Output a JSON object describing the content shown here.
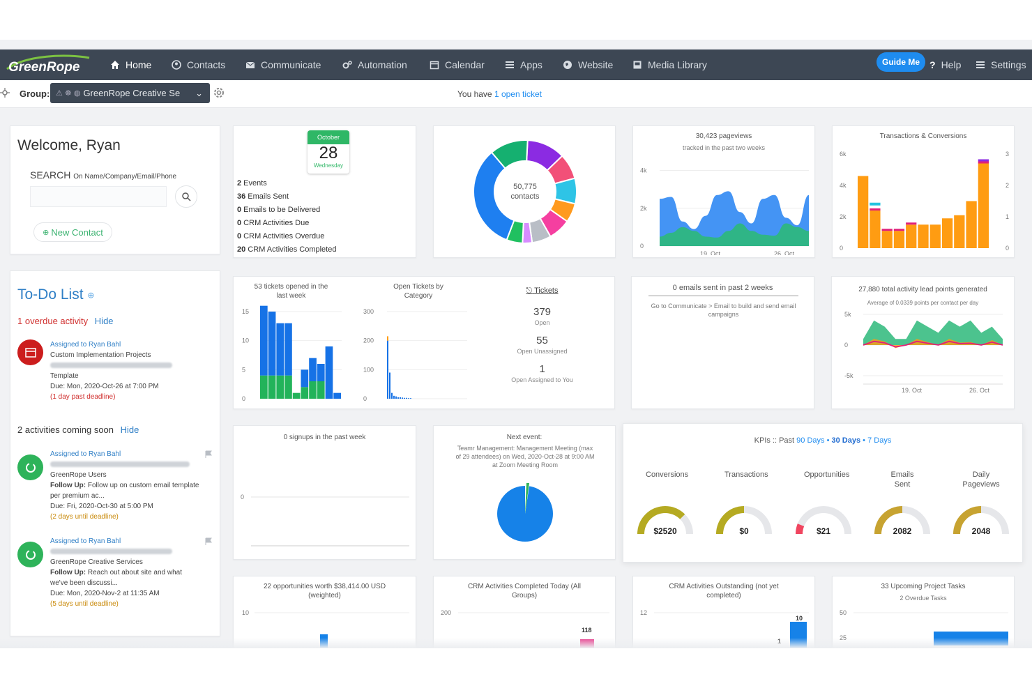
{
  "nav": {
    "logo": "GreenRope",
    "items": [
      "Home",
      "Contacts",
      "Communicate",
      "Automation",
      "Calendar",
      "Apps",
      "Website",
      "Media Library"
    ],
    "guide_me": "Guide Me",
    "help": "Help",
    "settings": "Settings"
  },
  "subbar": {
    "group_label": "Group:",
    "group_value": "GreenRope Creative Se",
    "ticket_prefix": "You have",
    "ticket_link": "1 open ticket"
  },
  "welcome": {
    "title": "Welcome, Ryan",
    "search_label": "SEARCH",
    "search_hint": "On Name/Company/Email/Phone",
    "new_contact": "New Contact"
  },
  "calendar": {
    "month": "October",
    "day": "28",
    "weekday": "Wednesday",
    "stats": [
      {
        "n": "2",
        "t": "Events"
      },
      {
        "n": "36",
        "t": "Emails Sent"
      },
      {
        "n": "0",
        "t": "Emails to be Delivered"
      },
      {
        "n": "0",
        "t": "CRM Activities Due"
      },
      {
        "n": "0",
        "t": "CRM Activities Overdue"
      },
      {
        "n": "20",
        "t": "CRM Activities Completed"
      }
    ]
  },
  "donut": {
    "center_value": "50,775",
    "center_label": "contacts",
    "segment_colors": [
      "#8b2be2",
      "#f25078",
      "#2ec4e6",
      "#ff9a1e",
      "#f53fa0",
      "#b9bec6",
      "#d78cff",
      "#20c060",
      "#1e7ff0",
      "#15b070"
    ]
  },
  "pageviews": {
    "title": "30,423 pageviews",
    "subtitle": "tracked in the past two weeks",
    "chart_data": {
      "type": "area",
      "x_ticks": [
        "19. Oct",
        "26. Oct"
      ],
      "y_ticks": [
        "0",
        "2k",
        "4k"
      ],
      "series": [
        {
          "values": [
            2500,
            2600,
            1300,
            900,
            1600,
            2700,
            2900,
            1800,
            1200,
            2500,
            2700,
            1500,
            1100,
            2700
          ]
        },
        {
          "values": [
            500,
            700,
            1000,
            800,
            500,
            450,
            800,
            1200,
            800,
            600,
            550,
            1200,
            1000,
            800
          ]
        }
      ]
    }
  },
  "transactions": {
    "title": "Transactions & Conversions",
    "chart_data": {
      "type": "bar",
      "y_ticks_left": [
        "0",
        "2k",
        "4k",
        "6k"
      ],
      "y_ticks_right": [
        "0",
        "1",
        "2",
        "3"
      ],
      "values": [
        4600,
        2400,
        1100,
        1100,
        1500,
        1500,
        1500,
        1900,
        2100,
        3000,
        5400
      ],
      "magenta_marks": [
        0,
        1,
        1,
        1,
        1,
        0,
        0,
        0,
        0,
        0,
        1
      ]
    }
  },
  "tickets_week": {
    "title": "53 tickets opened in the last week",
    "chart_data": {
      "type": "bar",
      "y_ticks": [
        "0",
        "5",
        "10",
        "15"
      ],
      "series": [
        {
          "name": "blue",
          "values": [
            12,
            11,
            9,
            9,
            0,
            3,
            4,
            3,
            9,
            1
          ]
        },
        {
          "name": "green",
          "values": [
            4,
            4,
            4,
            4,
            1,
            2,
            3,
            3,
            0,
            0
          ]
        }
      ]
    }
  },
  "tickets_category": {
    "title": "Open Tickets by Category",
    "chart_data": {
      "type": "bar",
      "y_ticks": [
        "0",
        "100",
        "200",
        "300"
      ],
      "values": [
        200,
        90,
        20,
        10,
        8,
        5,
        5,
        4,
        3,
        3,
        2,
        2
      ]
    }
  },
  "tickets_summary": {
    "link": "Tickets",
    "rows": [
      {
        "n": "379",
        "t": "Open"
      },
      {
        "n": "55",
        "t": "Open Unassigned"
      },
      {
        "n": "1",
        "t": "Open Assigned to You"
      }
    ]
  },
  "emails_sent": {
    "title": "0 emails sent in past 2 weeks",
    "hint": "Go to Communicate > Email to build and send email campaigns"
  },
  "lead_points": {
    "title": "27,880 total activity lead points generated",
    "subtitle": "Average of 0.0339 points per contact per day",
    "chart_data": {
      "type": "area",
      "x_ticks": [
        "19. Oct",
        "26. Oct"
      ],
      "y_ticks": [
        "5k",
        "0",
        "-5k"
      ]
    }
  },
  "todo": {
    "title": "To-Do List",
    "overdue": "1 overdue activity",
    "hide": "Hide",
    "item1": {
      "assigned": "Assigned to Ryan Bahl",
      "project": "Custom Implementation Projects",
      "template": "Template",
      "due": "Due: Mon, 2020-Oct-26 at 7:00 PM",
      "note": "(1 day past deadline)"
    },
    "coming": "2 activities coming soon",
    "item2": {
      "assigned": "Assigned to Ryan Bahl",
      "group": "GreenRope Users",
      "follow_label": "Follow Up:",
      "follow_text": "Follow up on custom email template per premium ac...",
      "due": "Due: Fri, 2020-Oct-30 at 5:00 PM",
      "note": "(2 days until deadline)"
    },
    "item3": {
      "assigned": "Assigned to Ryan Bahl",
      "group": "GreenRope Creative Services",
      "follow_label": "Follow Up:",
      "follow_text": "Reach out about site and what we've been discussi...",
      "due": "Due: Mon, 2020-Nov-2 at 11:35 AM",
      "note": "(5 days until deadline)"
    }
  },
  "signups": {
    "title": "0 signups in the past week",
    "y_tick": "0"
  },
  "next_event": {
    "title": "Next event:",
    "text": "Teamr Management: Management Meeting (max of 29 attendees) on Wed, 2020-Oct-28 at 9:00 AM at Zoom Meeting Room"
  },
  "kpis": {
    "title_prefix": "KPIs :: Past",
    "opt90": "90 Days",
    "sep": "•",
    "opt30": "30 Days",
    "opt7": "7 Days",
    "gauges": [
      {
        "label": "Conversions",
        "value": "$2520",
        "level": 0.75,
        "color": "#b5aa22"
      },
      {
        "label": "Transactions",
        "value": "$0",
        "level": 0.5,
        "color": "#b5aa22"
      },
      {
        "label": "Opportunities",
        "value": "$21",
        "level": 0.12,
        "color": "#f0455f"
      },
      {
        "label": "Emails Sent",
        "value": "2082",
        "level": 0.5,
        "color": "#c7a331"
      },
      {
        "label": "Daily Pageviews",
        "value": "2048",
        "level": 0.5,
        "color": "#c7a331"
      }
    ]
  },
  "opps": {
    "title": "22 opportunities worth $38,414.00 USD (weighted)",
    "y_tick": "10"
  },
  "crm_completed": {
    "title": "CRM Activities Completed Today (All Groups)",
    "y_tick": "200",
    "bar_label": "118"
  },
  "crm_outstanding": {
    "title": "CRM Activities Outstanding (not yet completed)",
    "y_tick": "12",
    "bar_label1": "10",
    "bar_label2": "1"
  },
  "project_tasks": {
    "title": "33 Upcoming Project Tasks",
    "subtitle": "2 Overdue Tasks",
    "y_ticks": [
      "50",
      "25"
    ]
  }
}
